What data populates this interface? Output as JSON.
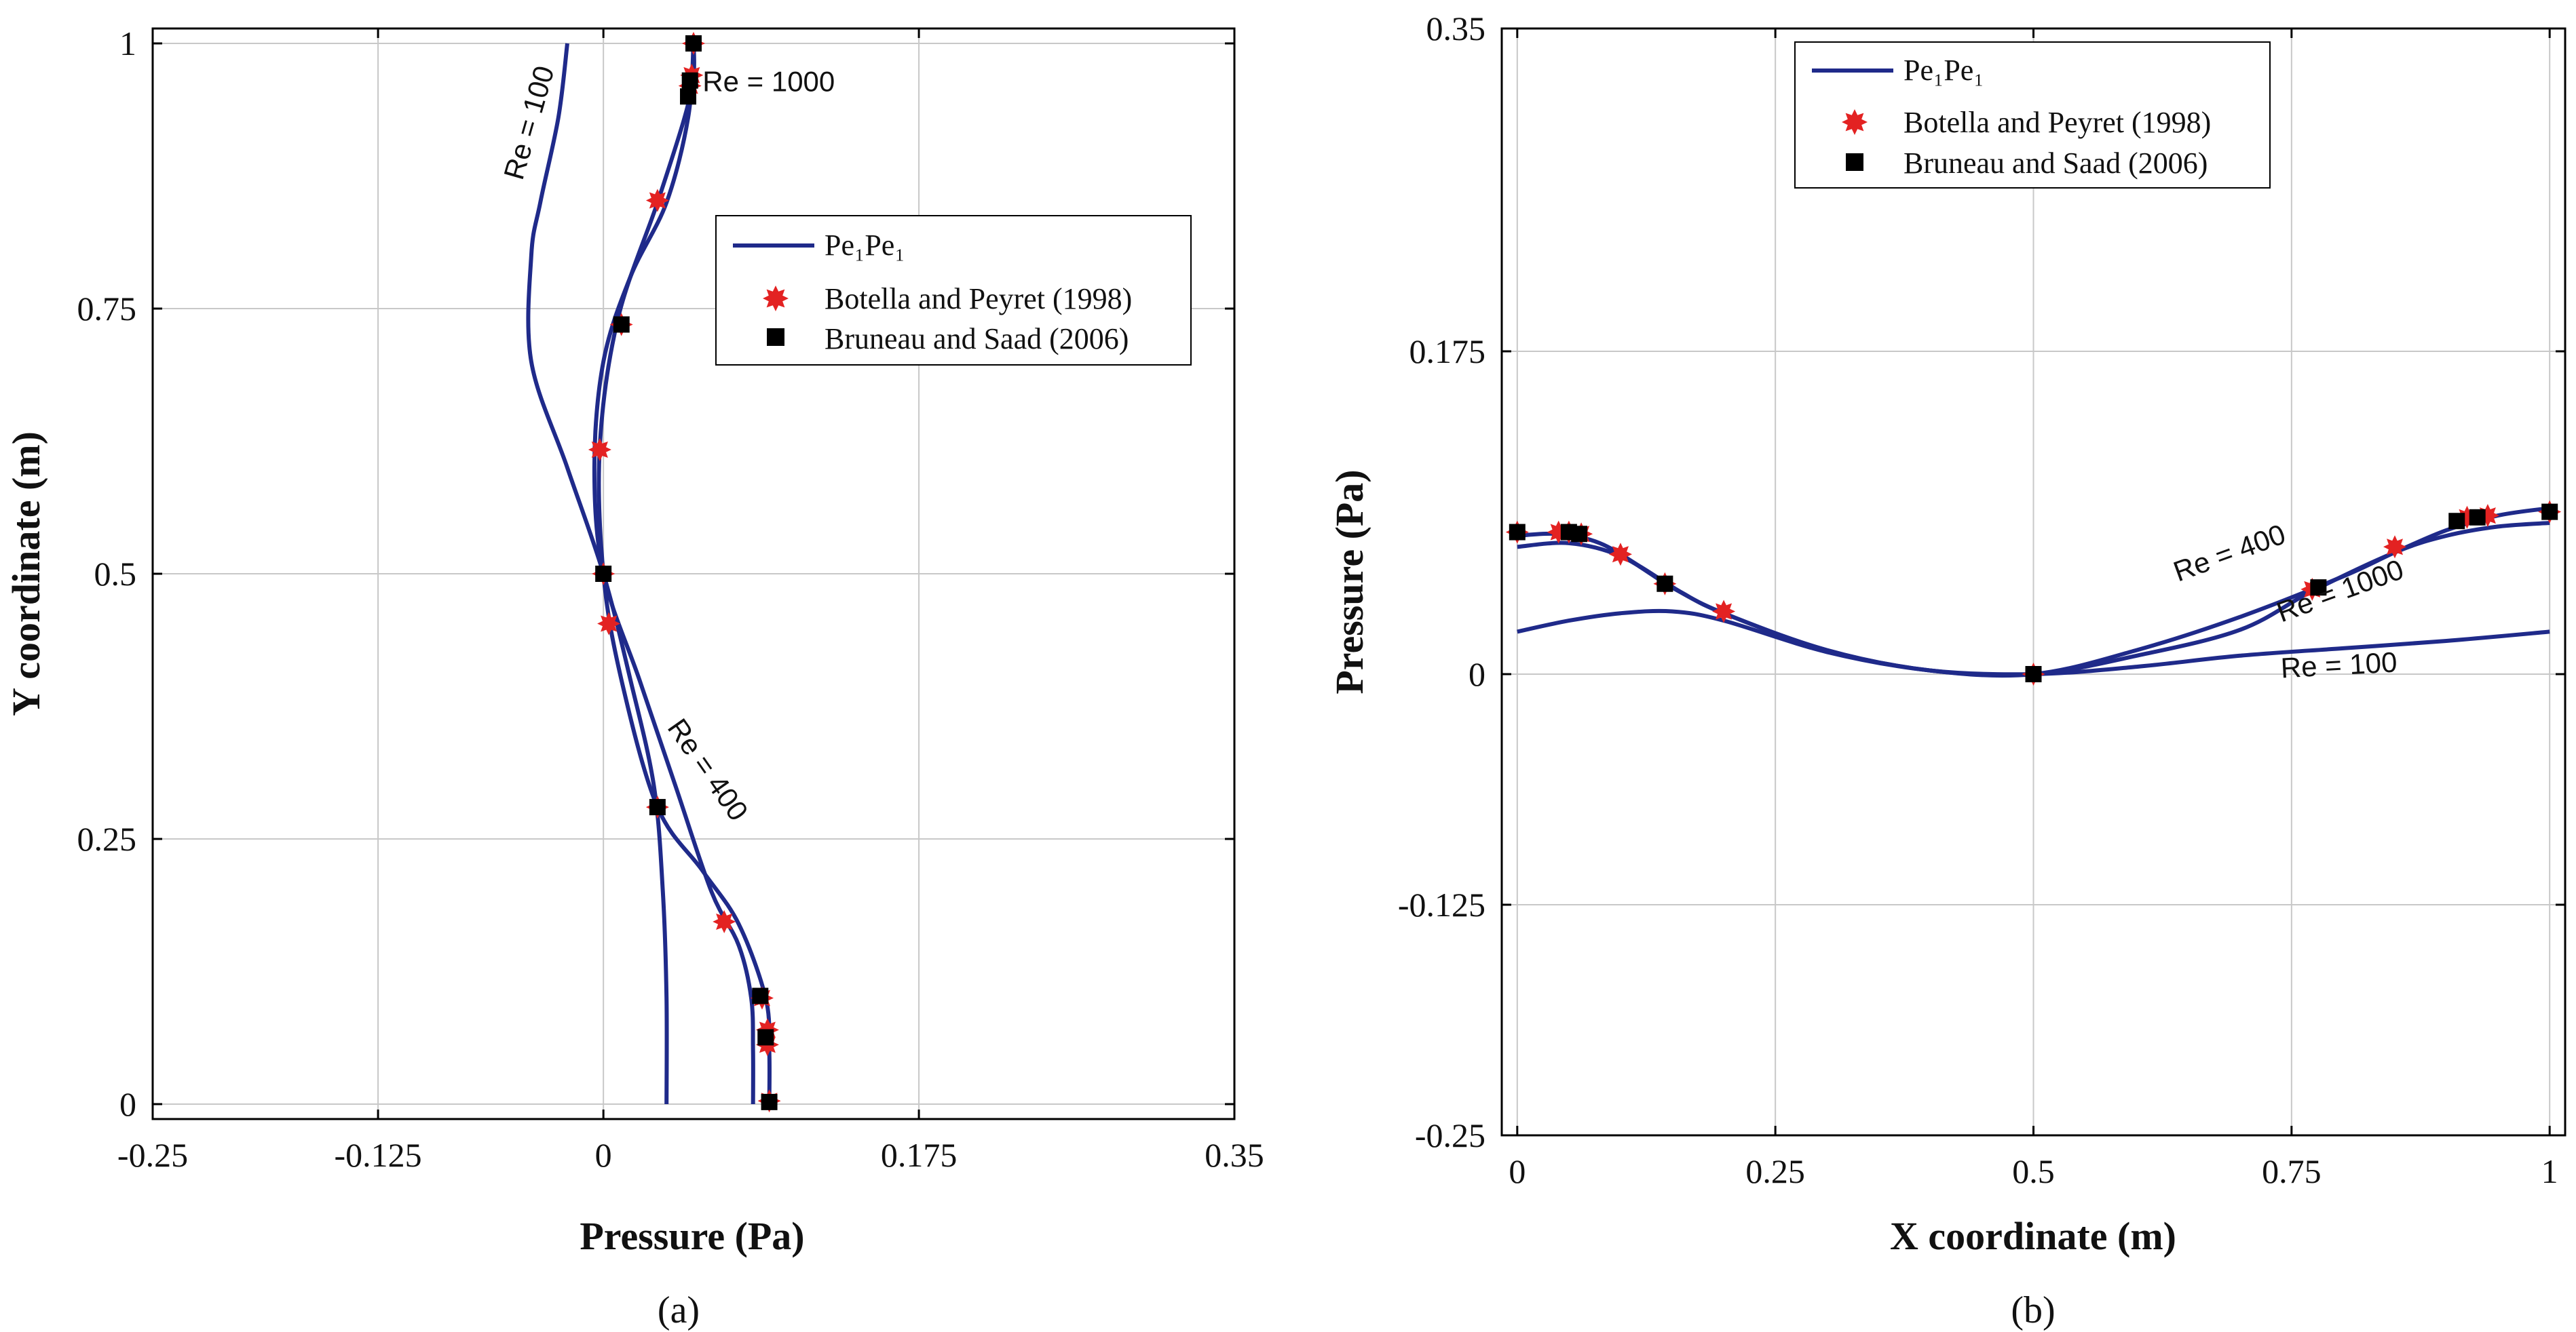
{
  "colors": {
    "line": "#1f2a8a",
    "botella": "#e32222",
    "bruneau": "#000000",
    "grid": "#c8c8c8"
  },
  "chart_data": [
    {
      "id": "a",
      "type": "line",
      "caption": "(a)",
      "xlabel": "Pressure (Pa)",
      "ylabel": "Y coordinate (m)",
      "xlim": [
        -0.25,
        0.35
      ],
      "ylim": [
        0,
        1
      ],
      "xticks": [
        -0.25,
        -0.125,
        0,
        0.175,
        0.35
      ],
      "xtick_labels": [
        "-0.25",
        "-0.125",
        "0",
        "0.175",
        "0.35"
      ],
      "yticks": [
        0,
        0.25,
        0.5,
        0.75,
        1
      ],
      "ytick_labels": [
        "0",
        "0.25",
        "0.5",
        "0.75",
        "1"
      ],
      "grid": true,
      "legend": {
        "position": "right",
        "entries": [
          "Pe₁Pe₁",
          "Botella and Peyret (1998)",
          "Bruneau and Saad (2006)"
        ]
      },
      "series": [
        {
          "name": "Re = 100",
          "points": [
            [
              0.035,
              0
            ],
            [
              0.035,
              0.1
            ],
            [
              0.033,
              0.2
            ],
            [
              0.028,
              0.3
            ],
            [
              0.015,
              0.4
            ],
            [
              0,
              0.5
            ],
            [
              -0.02,
              0.6
            ],
            [
              -0.04,
              0.7
            ],
            [
              -0.04,
              0.8
            ],
            [
              -0.035,
              0.85
            ],
            [
              -0.025,
              0.93
            ],
            [
              -0.02,
              1
            ]
          ]
        },
        {
          "name": "Re = 400",
          "points": [
            [
              0.083,
              0
            ],
            [
              0.083,
              0.05
            ],
            [
              0.082,
              0.1
            ],
            [
              0.075,
              0.15
            ],
            [
              0.06,
              0.2
            ],
            [
              0.04,
              0.3
            ],
            [
              0.02,
              0.4
            ],
            [
              0,
              0.5
            ],
            [
              -0.005,
              0.6
            ],
            [
              0,
              0.7
            ],
            [
              0.015,
              0.78
            ],
            [
              0.035,
              0.85
            ],
            [
              0.047,
              0.93
            ],
            [
              0.05,
              1
            ]
          ]
        },
        {
          "name": "Re = 1000",
          "points": [
            [
              0.092,
              0
            ],
            [
              0.092,
              0.05
            ],
            [
              0.09,
              0.1
            ],
            [
              0.075,
              0.17
            ],
            [
              0.055,
              0.22
            ],
            [
              0.03,
              0.28
            ],
            [
              0.01,
              0.4
            ],
            [
              0,
              0.5
            ],
            [
              -0.002,
              0.62
            ],
            [
              0.008,
              0.74
            ],
            [
              0.03,
              0.85
            ],
            [
              0.045,
              0.93
            ],
            [
              0.05,
              0.97
            ],
            [
              0.05,
              1
            ]
          ]
        }
      ],
      "markers_botella": [
        [
          0.05,
          1
        ],
        [
          0.049,
          0.97
        ],
        [
          0.048,
          0.96
        ],
        [
          0.03,
          0.852
        ],
        [
          0.01,
          0.735
        ],
        [
          -0.002,
          0.617
        ],
        [
          0,
          0.5
        ],
        [
          0.003,
          0.453
        ],
        [
          0.03,
          0.28
        ],
        [
          0.067,
          0.172
        ],
        [
          0.088,
          0.1
        ],
        [
          0.091,
          0.07
        ],
        [
          0.091,
          0.056
        ],
        [
          0.092,
          0.003
        ]
      ],
      "markers_bruneau": [
        [
          0.05,
          1
        ],
        [
          0.048,
          0.965
        ],
        [
          0.047,
          0.95
        ],
        [
          0.01,
          0.735
        ],
        [
          0,
          0.5
        ],
        [
          0.03,
          0.28
        ],
        [
          0.087,
          0.102
        ],
        [
          0.09,
          0.063
        ],
        [
          0.092,
          0.002
        ]
      ],
      "annotations": [
        {
          "text": "Re = 100",
          "x": -0.045,
          "y": 0.87,
          "angle": -74
        },
        {
          "text": "Re = 1000",
          "x": 0.055,
          "y": 0.955,
          "angle": 0
        },
        {
          "text": "Re = 400",
          "x": 0.035,
          "y": 0.355,
          "angle": 55
        }
      ]
    },
    {
      "id": "b",
      "type": "line",
      "caption": "(b)",
      "xlabel": "X coordinate (m)",
      "ylabel": "Pressure (Pa)",
      "xlim": [
        -0.015,
        1.015
      ],
      "ylim": [
        -0.25,
        0.35
      ],
      "xticks": [
        0,
        0.25,
        0.5,
        0.75,
        1
      ],
      "xtick_labels": [
        "0",
        "0.25",
        "0.5",
        "0.75",
        "1"
      ],
      "yticks": [
        -0.25,
        -0.125,
        0,
        0.175,
        0.35
      ],
      "ytick_labels": [
        "-0.25",
        "-0.125",
        "0",
        "0.175",
        "0.35"
      ],
      "grid": true,
      "legend": {
        "position": "top-center",
        "entries": [
          "Pe₁Pe₁",
          "Botella and Peyret (1998)",
          "Bruneau and Saad (2006)"
        ]
      },
      "series": [
        {
          "name": "Re = 100",
          "points": [
            [
              0,
              0.023
            ],
            [
              0.05,
              0.029
            ],
            [
              0.1,
              0.033
            ],
            [
              0.15,
              0.034
            ],
            [
              0.2,
              0.029
            ],
            [
              0.3,
              0.012
            ],
            [
              0.4,
              0.002
            ],
            [
              0.5,
              0
            ],
            [
              0.6,
              0.004
            ],
            [
              0.7,
              0.01
            ],
            [
              0.8,
              0.014
            ],
            [
              0.9,
              0.018
            ],
            [
              1,
              0.023
            ]
          ]
        },
        {
          "name": "Re = 400",
          "points": [
            [
              0,
              0.069
            ],
            [
              0.05,
              0.071
            ],
            [
              0.1,
              0.064
            ],
            [
              0.15,
              0.047
            ],
            [
              0.2,
              0.033
            ],
            [
              0.3,
              0.013
            ],
            [
              0.4,
              0.002
            ],
            [
              0.5,
              0
            ],
            [
              0.6,
              0.013
            ],
            [
              0.7,
              0.031
            ],
            [
              0.8,
              0.053
            ],
            [
              0.85,
              0.066
            ],
            [
              0.9,
              0.078
            ],
            [
              0.95,
              0.086
            ],
            [
              1,
              0.09
            ]
          ]
        },
        {
          "name": "Re = 1000",
          "points": [
            [
              0,
              0.075
            ],
            [
              0.04,
              0.076
            ],
            [
              0.08,
              0.071
            ],
            [
              0.12,
              0.058
            ],
            [
              0.16,
              0.044
            ],
            [
              0.2,
              0.033
            ],
            [
              0.3,
              0.013
            ],
            [
              0.4,
              0.002
            ],
            [
              0.5,
              0
            ],
            [
              0.6,
              0.01
            ],
            [
              0.7,
              0.024
            ],
            [
              0.77,
              0.045
            ],
            [
              0.85,
              0.066
            ],
            [
              0.9,
              0.075
            ],
            [
              0.95,
              0.08
            ],
            [
              1,
              0.082
            ]
          ]
        }
      ],
      "markers_botella": [
        [
          0,
          0.077
        ],
        [
          0.04,
          0.077
        ],
        [
          0.05,
          0.077
        ],
        [
          0.062,
          0.076
        ],
        [
          0.1,
          0.065
        ],
        [
          0.143,
          0.049
        ],
        [
          0.2,
          0.034
        ],
        [
          0.5,
          0
        ],
        [
          0.77,
          0.046
        ],
        [
          0.85,
          0.069
        ],
        [
          0.92,
          0.085
        ],
        [
          0.94,
          0.086
        ],
        [
          1,
          0.088
        ]
      ],
      "markers_bruneau": [
        [
          0,
          0.077
        ],
        [
          0.05,
          0.077
        ],
        [
          0.06,
          0.076
        ],
        [
          0.143,
          0.049
        ],
        [
          0.5,
          0
        ],
        [
          0.776,
          0.047
        ],
        [
          0.91,
          0.083
        ],
        [
          0.93,
          0.085
        ],
        [
          1,
          0.088
        ]
      ],
      "annotations": [
        {
          "text": "Re = 400",
          "x": 0.64,
          "y": 0.05,
          "angle": -20
        },
        {
          "text": "Re = 1000",
          "x": 0.74,
          "y": 0.028,
          "angle": -20
        },
        {
          "text": "Re = 100",
          "x": 0.74,
          "y": -0.002,
          "angle": -3
        }
      ]
    }
  ]
}
